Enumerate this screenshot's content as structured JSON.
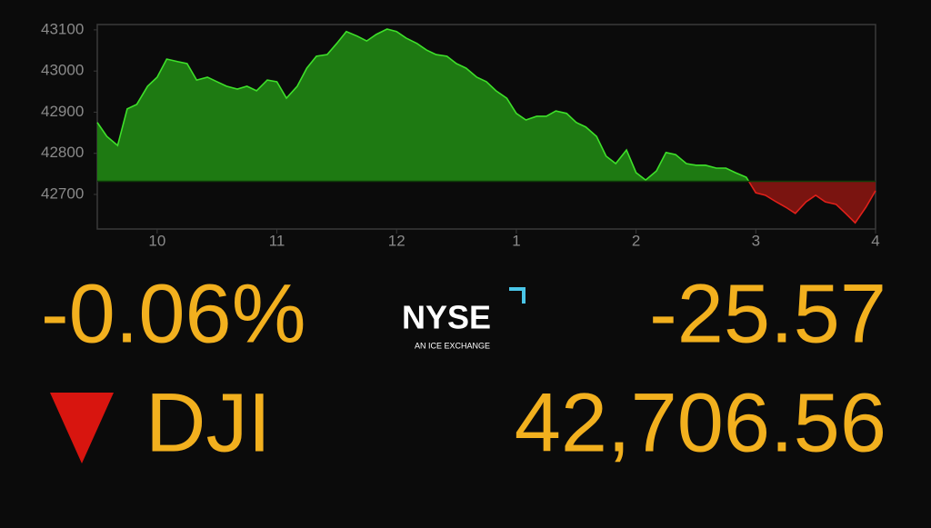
{
  "chart_data": {
    "type": "area",
    "x": [
      9.5,
      9.58,
      9.67,
      9.75,
      9.83,
      9.92,
      10.0,
      10.08,
      10.17,
      10.25,
      10.33,
      10.42,
      10.5,
      10.58,
      10.67,
      10.75,
      10.83,
      10.92,
      11.0,
      11.08,
      11.17,
      11.25,
      11.33,
      11.42,
      11.5,
      11.58,
      11.67,
      11.75,
      11.83,
      11.92,
      12.0,
      12.08,
      12.17,
      12.25,
      12.33,
      12.42,
      12.5,
      12.58,
      12.67,
      12.75,
      12.83,
      12.92,
      13.0,
      13.08,
      13.17,
      13.25,
      13.33,
      13.42,
      13.5,
      13.58,
      13.67,
      13.75,
      13.83,
      13.92,
      14.0,
      14.08,
      14.17,
      14.25,
      14.33,
      14.42,
      14.5,
      14.58,
      14.67,
      14.75,
      14.83,
      14.92,
      15.0,
      15.08,
      15.17,
      15.25,
      15.33,
      15.42,
      15.5,
      15.58,
      15.67,
      15.75,
      15.83,
      15.92,
      16.0
    ],
    "values": [
      42875,
      42841,
      42819,
      42908,
      42919,
      42963,
      42985,
      43029,
      43023,
      43018,
      42978,
      42985,
      42974,
      42963,
      42956,
      42963,
      42952,
      42978,
      42974,
      42934,
      42963,
      43007,
      43036,
      43040,
      43067,
      43096,
      43085,
      43073,
      43089,
      43102,
      43096,
      43080,
      43067,
      43051,
      43040,
      43036,
      43018,
      43007,
      42985,
      42974,
      42952,
      42934,
      42897,
      42881,
      42890,
      42890,
      42903,
      42897,
      42875,
      42864,
      42841,
      42793,
      42775,
      42808,
      42753,
      42735,
      42757,
      42802,
      42797,
      42775,
      42771,
      42771,
      42764,
      42764,
      42753,
      42742,
      42704,
      42698,
      42682,
      42669,
      42654,
      42682,
      42698,
      42682,
      42676,
      42654,
      42631,
      42669,
      42709
    ],
    "baseline": 42732,
    "up_color": "#1e7a12",
    "up_line": "#3ee02a",
    "down_color": "#7a1410",
    "down_line": "#e0201a",
    "xlim": [
      9.5,
      16
    ],
    "ylim": [
      42616,
      43113
    ],
    "xticks": [
      10,
      11,
      12,
      {
        "value": 13,
        "label": "1"
      },
      {
        "value": 14,
        "label": "2"
      },
      {
        "value": 15,
        "label": "3"
      },
      {
        "value": 16,
        "label": "4"
      }
    ],
    "yticks": [
      42700,
      42800,
      42900,
      43000,
      43100
    ]
  },
  "quote": {
    "percent_change": "-0.06%",
    "point_change": "-25.57",
    "symbol": "DJI",
    "price": "42,706.56"
  },
  "logo": {
    "name": "NYSE",
    "tagline": "AN ICE EXCHANGE"
  }
}
